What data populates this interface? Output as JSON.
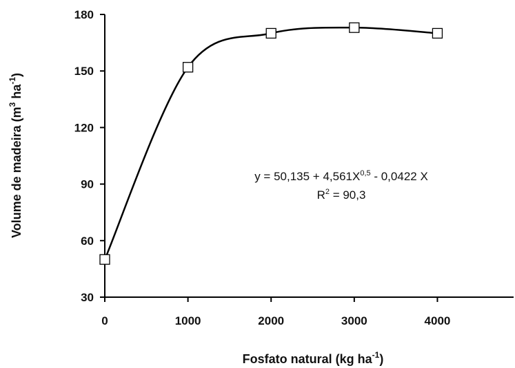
{
  "chart_data": {
    "type": "line",
    "x": [
      0,
      1000,
      2000,
      3000,
      4000
    ],
    "values": [
      50,
      152,
      170,
      173,
      170
    ],
    "color": "#000000",
    "xlim": [
      0,
      4900
    ],
    "xticks": [
      0,
      1000,
      2000,
      3000,
      4000
    ],
    "ylim": [
      30,
      180
    ],
    "yticks": [
      30,
      60,
      90,
      120,
      150,
      180
    ],
    "xlabel": [
      "Fosfato natural (kg ha",
      "-1",
      ")"
    ],
    "ylabel": [
      "Volume de madeira (m",
      "3",
      " ha",
      "-1",
      ")"
    ],
    "equation": [
      "y = 50,135 + 4,561X",
      "0,5",
      " - 0,0422 X"
    ],
    "r2": [
      "R",
      "2",
      " = 90,3"
    ]
  }
}
